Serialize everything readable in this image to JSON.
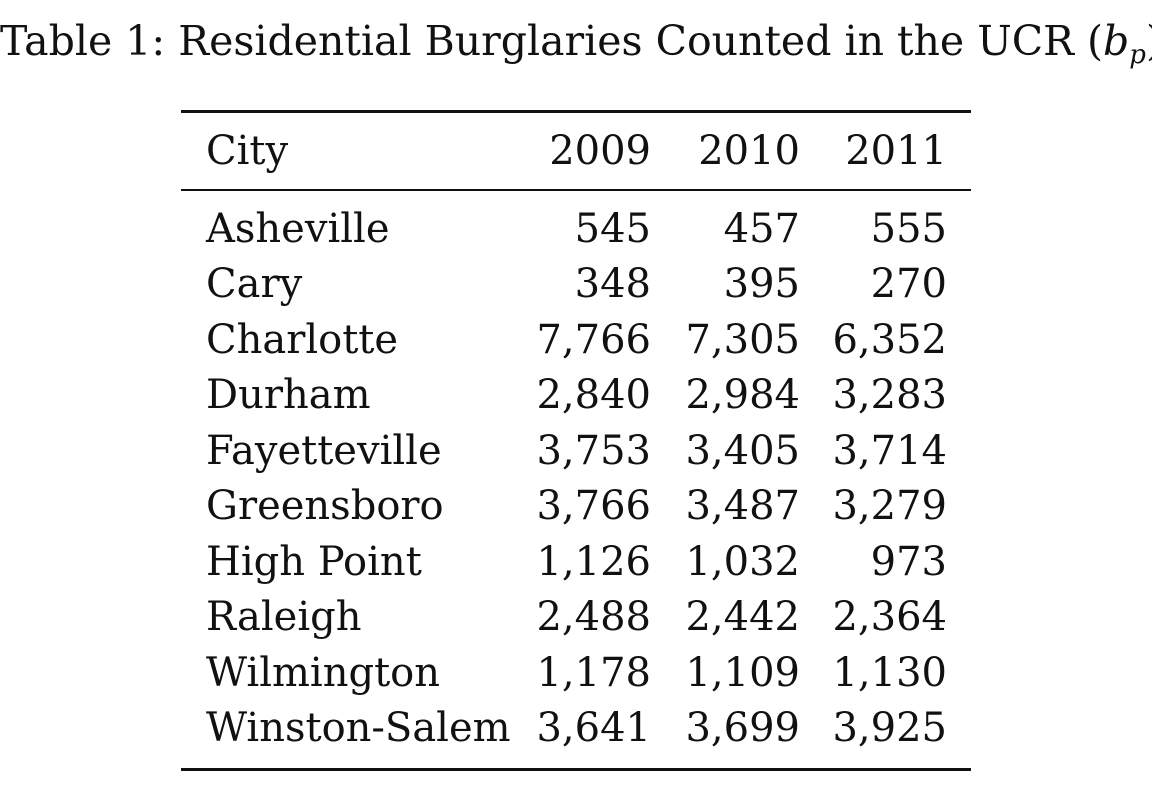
{
  "caption": {
    "label": "Table 1:",
    "title": "Residential Burglaries Counted in the UCR",
    "symbol_open": "(",
    "symbol": "b",
    "symbol_subscript": "p",
    "symbol_close": ")"
  },
  "table": {
    "headers": [
      "City",
      "2009",
      "2010",
      "2011"
    ],
    "rows": [
      {
        "city": "Asheville",
        "y2009": "545",
        "y2010": "457",
        "y2011": "555"
      },
      {
        "city": "Cary",
        "y2009": "348",
        "y2010": "395",
        "y2011": "270"
      },
      {
        "city": "Charlotte",
        "y2009": "7,766",
        "y2010": "7,305",
        "y2011": "6,352"
      },
      {
        "city": "Durham",
        "y2009": "2,840",
        "y2010": "2,984",
        "y2011": "3,283"
      },
      {
        "city": "Fayetteville",
        "y2009": "3,753",
        "y2010": "3,405",
        "y2011": "3,714"
      },
      {
        "city": "Greensboro",
        "y2009": "3,766",
        "y2010": "3,487",
        "y2011": "3,279"
      },
      {
        "city": "High Point",
        "y2009": "1,126",
        "y2010": "1,032",
        "y2011": "973"
      },
      {
        "city": "Raleigh",
        "y2009": "2,488",
        "y2010": "2,442",
        "y2011": "2,364"
      },
      {
        "city": "Wilmington",
        "y2009": "1,178",
        "y2010": "1,109",
        "y2011": "1,130"
      },
      {
        "city": "Winston-Salem",
        "y2009": "3,641",
        "y2010": "3,699",
        "y2011": "3,925"
      }
    ]
  }
}
